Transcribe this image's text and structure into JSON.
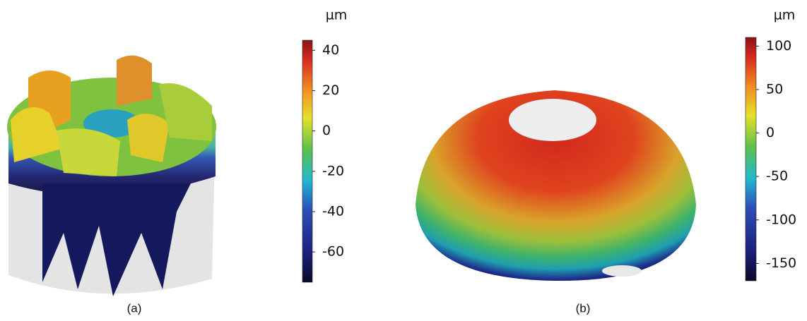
{
  "panels": [
    {
      "caption": "(a)",
      "colorbar": {
        "unit": "µm",
        "lim": [
          -75,
          45
        ],
        "ticks": [
          40,
          20,
          0,
          -20,
          -40,
          -60
        ]
      }
    },
    {
      "caption": "(b)",
      "colorbar": {
        "unit": "µm",
        "lim": [
          -170,
          110
        ],
        "ticks": [
          100,
          50,
          0,
          -50,
          -100,
          -150
        ]
      }
    }
  ]
}
